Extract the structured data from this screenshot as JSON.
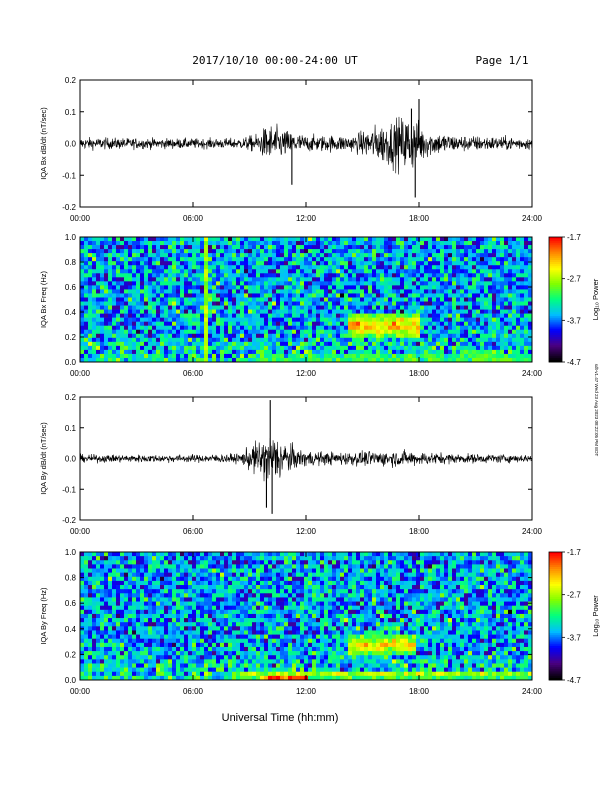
{
  "header": {
    "title": "2017/10/10  00:00-24:00 UT",
    "page": "Page 1/1"
  },
  "xlabel": "Universal Time (hh:mm)",
  "side_stamp": "sdt-v1.47 Wed 23 Aug 2023 08:22:05 PM EDT",
  "colorbar": {
    "label": "Log₁₀ Power",
    "ticks": [
      "-1.7",
      "-2.7",
      "-3.7",
      "-4.7"
    ],
    "range": [
      -4.7,
      -1.7
    ],
    "colors": [
      "#000000",
      "#4b0082",
      "#0000ff",
      "#00bfff",
      "#00ff7f",
      "#7fff00",
      "#ffff00",
      "#ff8c00",
      "#ff0000"
    ]
  },
  "chart_data": [
    {
      "type": "line",
      "name": "panel-bx",
      "ylabel": "IQA Bx dB/dt (nT/sec)",
      "ylim": [
        -0.2,
        0.2
      ],
      "yticks": [
        "0.2",
        "0.1",
        "0.0",
        "-0.1",
        "-0.2"
      ],
      "xlim": [
        "00:00",
        "24:00"
      ],
      "xticks": [
        "00:00",
        "06:00",
        "12:00",
        "18:00",
        "24:00"
      ],
      "color": "#000000",
      "envelope": [
        {
          "t": 0,
          "amp": 0.018
        },
        {
          "t": 6,
          "amp": 0.015
        },
        {
          "t": 8.5,
          "amp": 0.016
        },
        {
          "t": 9.5,
          "amp": 0.03
        },
        {
          "t": 10.0,
          "amp": 0.06
        },
        {
          "t": 10.5,
          "amp": 0.05
        },
        {
          "t": 11.0,
          "amp": 0.04
        },
        {
          "t": 12.0,
          "amp": 0.025
        },
        {
          "t": 14.5,
          "amp": 0.025
        },
        {
          "t": 15.5,
          "amp": 0.05
        },
        {
          "t": 16.5,
          "amp": 0.07
        },
        {
          "t": 17.5,
          "amp": 0.09
        },
        {
          "t": 18.5,
          "amp": 0.04
        },
        {
          "t": 20,
          "amp": 0.025
        },
        {
          "t": 24,
          "amp": 0.018
        }
      ],
      "spikes": [
        {
          "t": 11.25,
          "value": -0.13
        },
        {
          "t": 17.8,
          "value": -0.17
        },
        {
          "t": 18.0,
          "value": 0.14
        },
        {
          "t": 17.6,
          "value": 0.11
        }
      ]
    },
    {
      "type": "heatmap",
      "name": "panel-bx-freq",
      "ylabel": "IQA Bx Freq (Hz)",
      "ylim": [
        0.0,
        1.0
      ],
      "yticks": [
        "1.0",
        "0.8",
        "0.6",
        "0.4",
        "0.2",
        "0.0"
      ],
      "xlim": [
        "00:00",
        "24:00"
      ],
      "xticks": [
        "00:00",
        "06:00",
        "12:00",
        "18:00",
        "24:00"
      ],
      "colorbar_label": "Log₁₀ Power",
      "colorbar_ticks": [
        "-1.7",
        "-2.7",
        "-3.7",
        "-4.7"
      ],
      "features": [
        {
          "kind": "vline",
          "t": 6.6,
          "value": -2.7
        },
        {
          "kind": "blob",
          "t0": 14.2,
          "t1": 18.0,
          "f0": 0.18,
          "f1": 0.4,
          "value": -2.2
        },
        {
          "kind": "band",
          "t0": 9.5,
          "t1": 24.0,
          "f0": 0.0,
          "f1": 0.06,
          "value": -2.6
        },
        {
          "kind": "blob",
          "t0": 20.5,
          "t1": 22.5,
          "f0": 0.02,
          "f1": 0.12,
          "value": -2.9
        }
      ]
    },
    {
      "type": "line",
      "name": "panel-by",
      "ylabel": "IQA By dB/dt (nT/sec)",
      "ylim": [
        -0.2,
        0.2
      ],
      "yticks": [
        "0.2",
        "0.1",
        "0.0",
        "-0.1",
        "-0.2"
      ],
      "xlim": [
        "00:00",
        "24:00"
      ],
      "xticks": [
        "00:00",
        "06:00",
        "12:00",
        "18:00",
        "24:00"
      ],
      "color": "#000000",
      "envelope": [
        {
          "t": 0,
          "amp": 0.012
        },
        {
          "t": 6,
          "amp": 0.012
        },
        {
          "t": 8.5,
          "amp": 0.015
        },
        {
          "t": 9.3,
          "amp": 0.05
        },
        {
          "t": 9.8,
          "amp": 0.07
        },
        {
          "t": 10.3,
          "amp": 0.08
        },
        {
          "t": 10.8,
          "amp": 0.06
        },
        {
          "t": 11.5,
          "amp": 0.03
        },
        {
          "t": 13,
          "amp": 0.02
        },
        {
          "t": 17,
          "amp": 0.025
        },
        {
          "t": 20,
          "amp": 0.015
        },
        {
          "t": 24,
          "amp": 0.012
        }
      ],
      "spikes": [
        {
          "t": 10.1,
          "value": 0.19
        },
        {
          "t": 10.2,
          "value": -0.18
        },
        {
          "t": 9.9,
          "value": -0.16
        }
      ]
    },
    {
      "type": "heatmap",
      "name": "panel-by-freq",
      "ylabel": "IQA By Freq (Hz)",
      "ylim": [
        0.0,
        1.0
      ],
      "yticks": [
        "1.0",
        "0.8",
        "0.6",
        "0.4",
        "0.2",
        "0.0"
      ],
      "xlim": [
        "00:00",
        "24:00"
      ],
      "xticks": [
        "00:00",
        "06:00",
        "12:00",
        "18:00",
        "24:00"
      ],
      "colorbar_label": "Log₁₀ Power",
      "colorbar_ticks": [
        "-1.7",
        "-2.7",
        "-3.7",
        "-4.7"
      ],
      "features": [
        {
          "kind": "blob",
          "t0": 14.2,
          "t1": 17.8,
          "f0": 0.18,
          "f1": 0.36,
          "value": -2.3
        },
        {
          "kind": "band",
          "t0": 8.0,
          "t1": 24.0,
          "f0": 0.0,
          "f1": 0.08,
          "value": -2.5
        },
        {
          "kind": "blob",
          "t0": 9.5,
          "t1": 12.0,
          "f0": 0.0,
          "f1": 0.03,
          "value": -1.9
        }
      ]
    }
  ]
}
